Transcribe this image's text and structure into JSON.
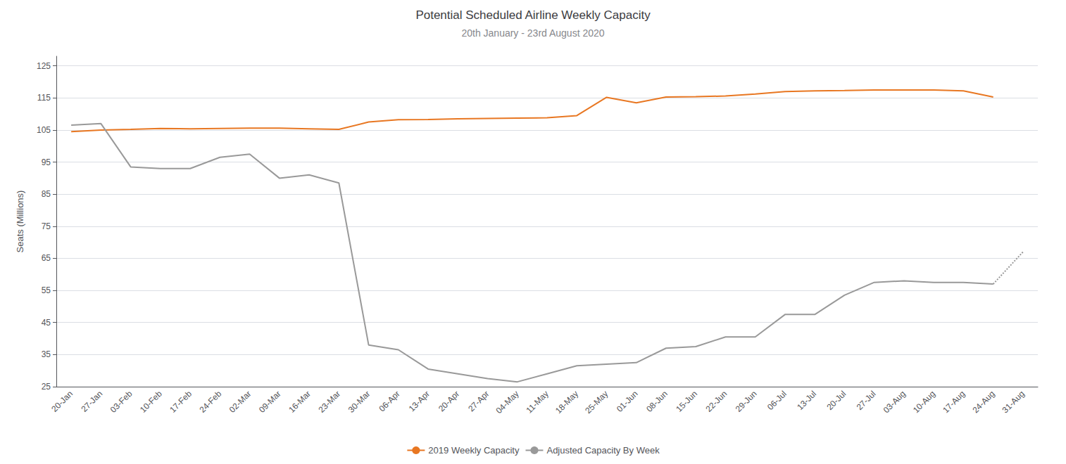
{
  "chart_data": {
    "type": "line",
    "title": "Potential Scheduled Airline Weekly Capacity",
    "subtitle": "20th January - 23rd August 2020",
    "y_label": "Seats (Millions)",
    "categories": [
      "20-Jan",
      "27-Jan",
      "03-Feb",
      "10-Feb",
      "17-Feb",
      "24-Feb",
      "02-Mar",
      "09-Mar",
      "16-Mar",
      "23-Mar",
      "30-Mar",
      "06-Apr",
      "13-Apr",
      "20-Apr",
      "27-Apr",
      "04-May",
      "11-May",
      "18-May",
      "25-May",
      "01-Jun",
      "08-Jun",
      "15-Jun",
      "22-Jun",
      "29-Jun",
      "06-Jul",
      "13-Jul",
      "20-Jul",
      "27-Jul",
      "03-Aug",
      "10-Aug",
      "17-Aug",
      "24-Aug",
      "31-Aug"
    ],
    "series": [
      {
        "name": "2019 Weekly Capacity",
        "color": "#E87722",
        "line_style": "solid",
        "values": [
          104.5,
          105.0,
          105.2,
          105.5,
          105.4,
          105.5,
          105.6,
          105.6,
          105.4,
          105.2,
          107.5,
          108.2,
          108.3,
          108.5,
          108.6,
          108.7,
          108.8,
          109.5,
          115.2,
          113.5,
          115.3,
          115.4,
          115.6,
          116.2,
          117.0,
          117.2,
          117.3,
          117.5,
          117.5,
          117.5,
          117.2,
          115.3,
          null
        ]
      },
      {
        "name": "Adjusted Capacity By Week",
        "color": "#999999",
        "line_style": "solid",
        "values": [
          106.5,
          107.0,
          93.5,
          93.0,
          93.0,
          96.5,
          97.5,
          90.0,
          91.0,
          88.5,
          38.0,
          36.5,
          30.5,
          29.0,
          27.5,
          26.5,
          29.0,
          31.5,
          32.0,
          32.5,
          37.0,
          37.5,
          40.5,
          40.5,
          47.5,
          47.5,
          53.5,
          57.5,
          58.0,
          57.5,
          57.5,
          57.0,
          null
        ]
      },
      {
        "color": "#999999",
        "line_style": "dotted",
        "values": [
          null,
          null,
          null,
          null,
          null,
          null,
          null,
          null,
          null,
          null,
          null,
          null,
          null,
          null,
          null,
          null,
          null,
          null,
          null,
          null,
          null,
          null,
          null,
          null,
          null,
          null,
          null,
          null,
          null,
          null,
          null,
          57.0,
          67.0
        ]
      }
    ],
    "ylim": [
      25,
      128
    ],
    "yticks": [
      25,
      35,
      45,
      55,
      65,
      75,
      85,
      95,
      105,
      115,
      125
    ],
    "grid": true,
    "legend": "bottom"
  }
}
